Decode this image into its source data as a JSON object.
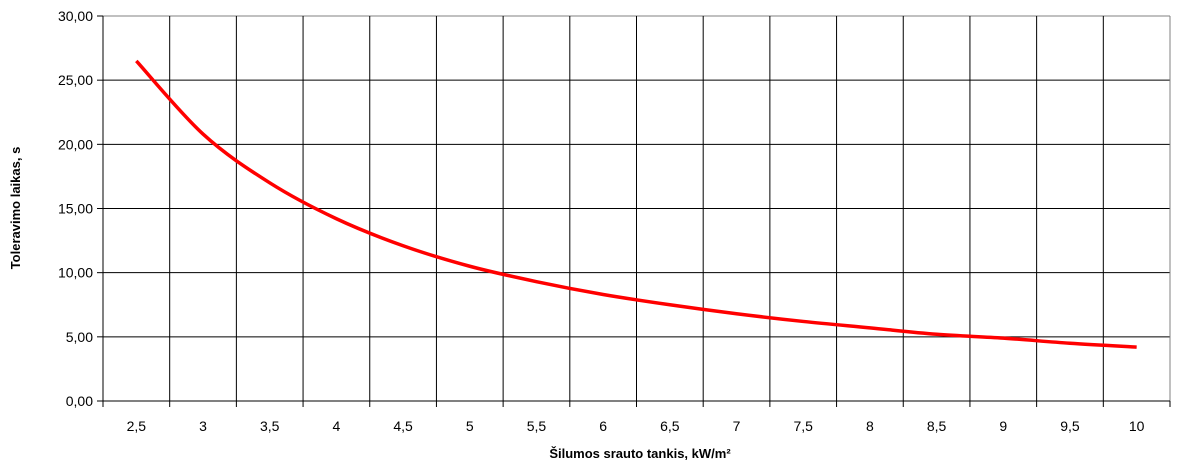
{
  "chart_data": {
    "type": "line",
    "title": "",
    "xlabel": "Šilumos srauto tankis, kW/m²",
    "ylabel": "Toleravimo laikas, s",
    "categories": [
      "2,5",
      "3",
      "3,5",
      "4",
      "4,5",
      "5",
      "5,5",
      "6",
      "6,5",
      "7",
      "7,5",
      "8",
      "8,5",
      "9",
      "9,5",
      "10"
    ],
    "yticks": [
      "0,00",
      "5,00",
      "10,00",
      "15,00",
      "20,00",
      "25,00",
      "30,00"
    ],
    "ylim": [
      0,
      30
    ],
    "grid": true,
    "legend": "none",
    "series": [
      {
        "color": "#ff0000",
        "values": [
          26.5,
          20.8,
          17.0,
          14.2,
          12.1,
          10.5,
          9.3,
          8.3,
          7.5,
          6.8,
          6.2,
          5.7,
          5.2,
          4.9,
          4.5,
          4.2
        ]
      }
    ]
  }
}
